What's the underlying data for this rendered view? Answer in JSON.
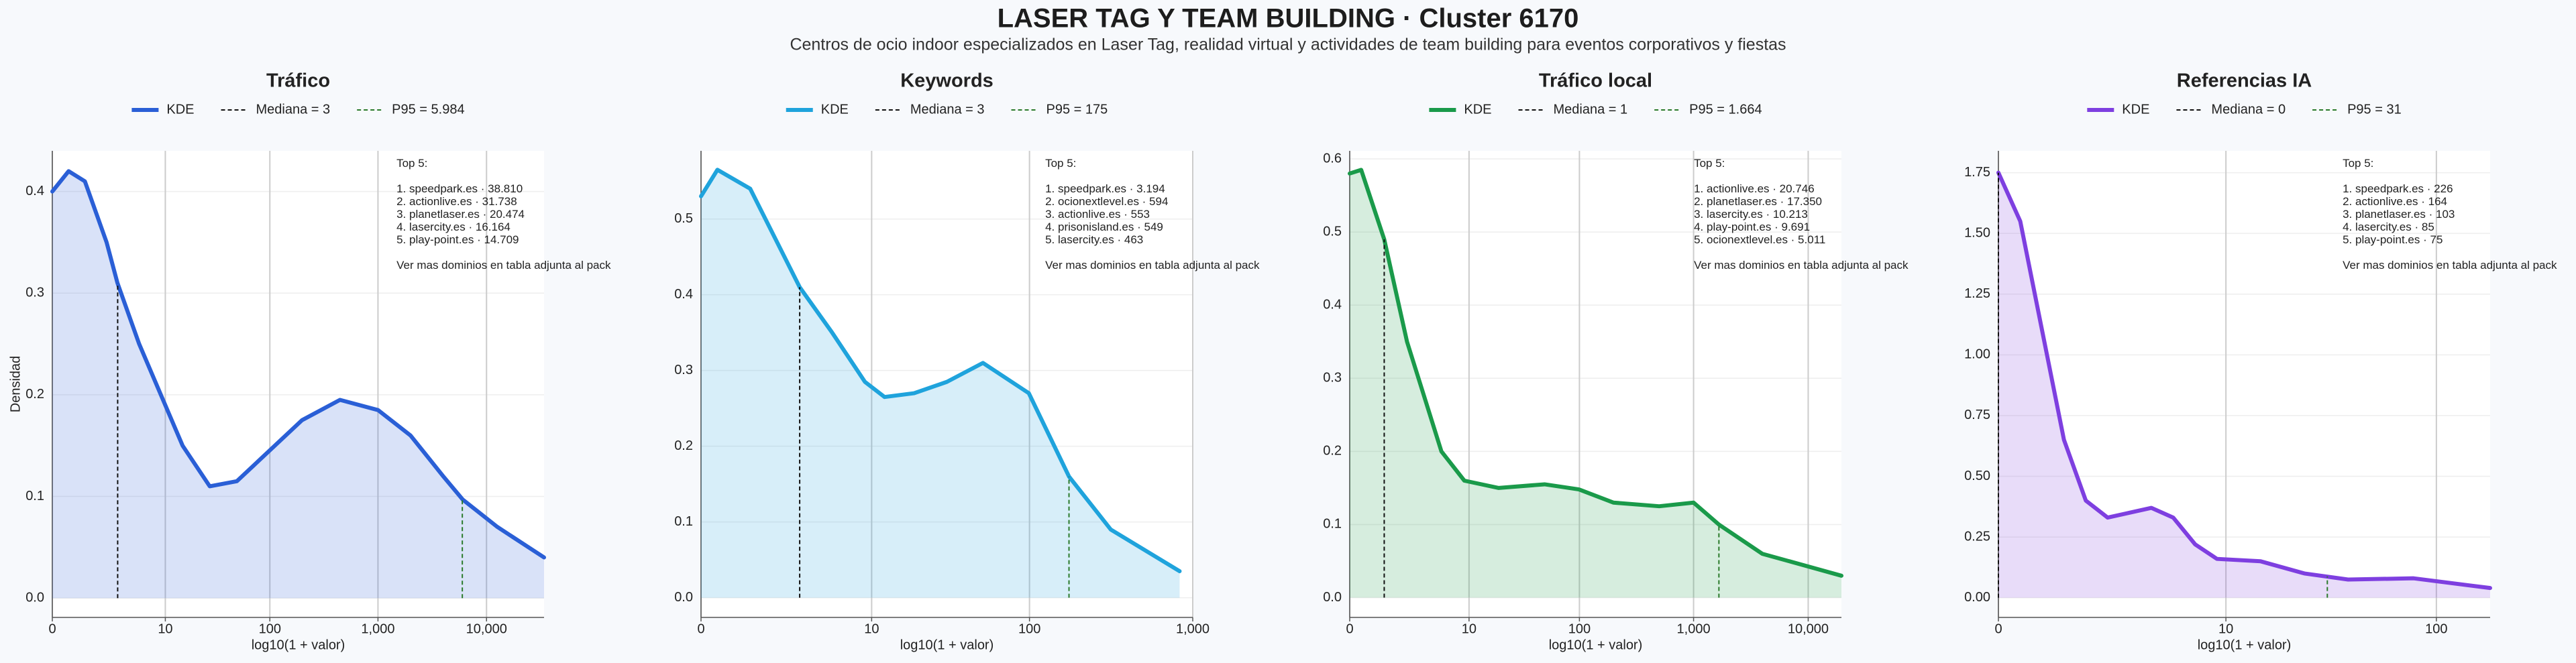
{
  "title": "LASER TAG Y TEAM BUILDING · Cluster 6170",
  "subtitle": "Centros de ocio indoor especializados en Laser Tag, realidad virtual y actividades de team building para eventos corporativos y fiestas",
  "chart_data": [
    {
      "type": "area",
      "title": "Tráfico",
      "xlabel": "log10(1 + valor)",
      "ylabel": "Densidad",
      "x": [
        0,
        0.15,
        0.3,
        0.5,
        0.6,
        0.8,
        1.0,
        1.2,
        1.45,
        1.7,
        2.0,
        2.3,
        2.65,
        3.0,
        3.3,
        3.6,
        3.78,
        4.1,
        4.53
      ],
      "series": [
        {
          "name": "KDE",
          "color": "#2a5fd6",
          "values": [
            0.4,
            0.42,
            0.41,
            0.35,
            0.31,
            0.25,
            0.2,
            0.15,
            0.11,
            0.115,
            0.145,
            0.175,
            0.195,
            0.185,
            0.16,
            0.12,
            0.097,
            0.07,
            0.04
          ]
        }
      ],
      "reference_lines": [
        {
          "name": "Mediana = 3",
          "x": 0.602,
          "y": 0.31,
          "color": "#111111"
        },
        {
          "name": "P95 = 5.984",
          "x": 3.777,
          "y": 0.097,
          "color": "#2a7a2a"
        }
      ],
      "xlim": [
        0,
        4.53
      ],
      "xticks": [
        {
          "value": 0,
          "label": "0"
        },
        {
          "value": 1.041,
          "label": "10"
        },
        {
          "value": 2.004,
          "label": "100"
        },
        {
          "value": 3.0,
          "label": "1,000"
        },
        {
          "value": 4.0,
          "label": "10,000"
        }
      ],
      "ylim": [
        -0.019,
        0.44
      ],
      "yticks": [
        {
          "value": 0,
          "label": "0.0"
        },
        {
          "value": 0.1,
          "label": "0.1"
        },
        {
          "value": 0.2,
          "label": "0.2"
        },
        {
          "value": 0.3,
          "label": "0.3"
        },
        {
          "value": 0.4,
          "label": "0.4"
        }
      ],
      "annotation": [
        "Top 5:",
        "1. speedpark.es · 38.810",
        "2. actionlive.es · 31.738",
        "3. planetlaser.es · 20.474",
        "4. lasercity.es · 16.164",
        "5. play-point.es · 14.709",
        "Ver mas dominios en tabla adjunta al pack"
      ]
    },
    {
      "type": "area",
      "title": "Keywords",
      "xlabel": "log10(1 + valor)",
      "x": [
        0,
        0.1,
        0.3,
        0.602,
        0.8,
        1.0,
        1.12,
        1.3,
        1.5,
        1.72,
        2.0,
        2.245,
        2.5,
        2.92
      ],
      "series": [
        {
          "name": "KDE",
          "color": "#1fa3dc",
          "values": [
            0.53,
            0.565,
            0.54,
            0.41,
            0.35,
            0.285,
            0.265,
            0.27,
            0.285,
            0.31,
            0.27,
            0.16,
            0.09,
            0.035
          ]
        }
      ],
      "reference_lines": [
        {
          "name": "Mediana = 3",
          "x": 0.602,
          "y": 0.41,
          "color": "#111111"
        },
        {
          "name": "P95 = 175",
          "x": 2.245,
          "y": 0.16,
          "color": "#2a7a2a"
        }
      ],
      "xlim": [
        0,
        3.0
      ],
      "xticks": [
        {
          "value": 0,
          "label": "0"
        },
        {
          "value": 1.041,
          "label": "10"
        },
        {
          "value": 2.004,
          "label": "100"
        },
        {
          "value": 3.0,
          "label": "1,000"
        }
      ],
      "ylim": [
        -0.026,
        0.59
      ],
      "yticks": [
        {
          "value": 0,
          "label": "0.0"
        },
        {
          "value": 0.1,
          "label": "0.1"
        },
        {
          "value": 0.2,
          "label": "0.2"
        },
        {
          "value": 0.3,
          "label": "0.3"
        },
        {
          "value": 0.4,
          "label": "0.4"
        },
        {
          "value": 0.5,
          "label": "0.5"
        }
      ],
      "annotation": [
        "Top 5:",
        "1. speedpark.es · 3.194",
        "2. ocionextlevel.es · 594",
        "3. actionlive.es · 553",
        "4. prisonisland.es · 549",
        "5. lasercity.es · 463",
        "Ver mas dominios en tabla adjunta al pack"
      ]
    },
    {
      "type": "area",
      "title": "Tráfico local",
      "xlabel": "log10(1 + valor)",
      "x": [
        0,
        0.1,
        0.301,
        0.5,
        0.8,
        1.0,
        1.3,
        1.7,
        2.0,
        2.3,
        2.7,
        3.0,
        3.221,
        3.6,
        4.29
      ],
      "series": [
        {
          "name": "KDE",
          "color": "#1a9a4a",
          "values": [
            0.58,
            0.585,
            0.49,
            0.35,
            0.2,
            0.16,
            0.15,
            0.155,
            0.148,
            0.13,
            0.125,
            0.13,
            0.1,
            0.06,
            0.03
          ]
        }
      ],
      "reference_lines": [
        {
          "name": "Mediana = 1",
          "x": 0.301,
          "y": 0.49,
          "color": "#111111"
        },
        {
          "name": "P95 = 1.664",
          "x": 3.221,
          "y": 0.1,
          "color": "#2a7a2a"
        }
      ],
      "xlim": [
        0,
        4.29
      ],
      "xticks": [
        {
          "value": 0,
          "label": "0"
        },
        {
          "value": 1.041,
          "label": "10"
        },
        {
          "value": 2.004,
          "label": "100"
        },
        {
          "value": 3.0,
          "label": "1,000"
        },
        {
          "value": 4.0,
          "label": "10,000"
        }
      ],
      "ylim": [
        -0.027,
        0.611
      ],
      "yticks": [
        {
          "value": 0,
          "label": "0.0"
        },
        {
          "value": 0.1,
          "label": "0.1"
        },
        {
          "value": 0.2,
          "label": "0.2"
        },
        {
          "value": 0.3,
          "label": "0.3"
        },
        {
          "value": 0.4,
          "label": "0.4"
        },
        {
          "value": 0.5,
          "label": "0.5"
        },
        {
          "value": 0.6,
          "label": "0.6"
        }
      ],
      "annotation": [
        "Top 5:",
        "1. actionlive.es · 20.746",
        "2. planetlaser.es · 17.350",
        "3. lasercity.es · 10.213",
        "4. play-point.es · 9.691",
        "5. ocionextlevel.es · 5.011",
        "Ver mas dominios en tabla adjunta al pack"
      ]
    },
    {
      "type": "area",
      "title": "Referencias IA",
      "xlabel": "log10(1 + valor)",
      "x": [
        0,
        0.1,
        0.2,
        0.3,
        0.4,
        0.5,
        0.6,
        0.7,
        0.8,
        0.9,
        1.0,
        1.2,
        1.4,
        1.6,
        1.9,
        2.25
      ],
      "series": [
        {
          "name": "KDE",
          "color": "#7e3fe0",
          "values": [
            1.75,
            1.55,
            1.1,
            0.65,
            0.4,
            0.33,
            0.35,
            0.37,
            0.33,
            0.22,
            0.16,
            0.15,
            0.1,
            0.075,
            0.08,
            0.04
          ]
        }
      ],
      "reference_lines": [
        {
          "name": "Mediana = 0",
          "x": 0,
          "y": 1.75,
          "color": "#111111"
        },
        {
          "name": "P95 = 31",
          "x": 1.505,
          "y": 0.088,
          "color": "#2a7a2a"
        }
      ],
      "xlim": [
        0,
        2.25
      ],
      "xticks": [
        {
          "value": 0,
          "label": "0"
        },
        {
          "value": 1.041,
          "label": "10"
        },
        {
          "value": 2.004,
          "label": "100"
        }
      ],
      "ylim": [
        -0.081,
        1.84
      ],
      "yticks": [
        {
          "value": 0,
          "label": "0.00"
        },
        {
          "value": 0.25,
          "label": "0.25"
        },
        {
          "value": 0.5,
          "label": "0.50"
        },
        {
          "value": 0.75,
          "label": "0.75"
        },
        {
          "value": 1.0,
          "label": "1.00"
        },
        {
          "value": 1.25,
          "label": "1.25"
        },
        {
          "value": 1.5,
          "label": "1.50"
        },
        {
          "value": 1.75,
          "label": "1.75"
        }
      ],
      "annotation": [
        "Top 5:",
        "1. speedpark.es · 226",
        "2. actionlive.es · 164",
        "3. planetlaser.es · 103",
        "4. lasercity.es · 85",
        "5. play-point.es · 75",
        "Ver mas dominios en tabla adjunta al pack"
      ]
    }
  ]
}
